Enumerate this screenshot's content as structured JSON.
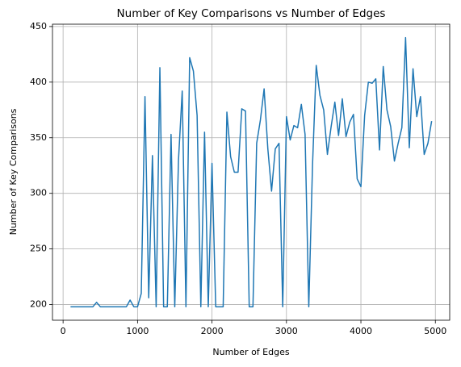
{
  "chart_data": {
    "type": "line",
    "title": "Number of Key Comparisons vs Number of Edges",
    "x_label": "Number of Edges",
    "y_label": "Number of Key Comparisons",
    "x": [
      100,
      150,
      200,
      250,
      300,
      350,
      400,
      450,
      500,
      550,
      600,
      650,
      700,
      750,
      800,
      850,
      900,
      950,
      1000,
      1050,
      1100,
      1150,
      1200,
      1250,
      1300,
      1350,
      1400,
      1450,
      1500,
      1550,
      1600,
      1650,
      1700,
      1750,
      1800,
      1850,
      1900,
      1950,
      2000,
      2050,
      2100,
      2150,
      2200,
      2250,
      2300,
      2350,
      2400,
      2450,
      2500,
      2550,
      2600,
      2650,
      2700,
      2750,
      2800,
      2850,
      2900,
      2950,
      3000,
      3050,
      3100,
      3150,
      3200,
      3250,
      3300,
      3350,
      3400,
      3450,
      3500,
      3550,
      3600,
      3650,
      3700,
      3750,
      3800,
      3850,
      3900,
      3950,
      4000,
      4050,
      4100,
      4150,
      4200,
      4250,
      4300,
      4350,
      4400,
      4450,
      4500,
      4550,
      4600,
      4650,
      4700,
      4750,
      4800,
      4850,
      4900,
      4950
    ],
    "series": [
      {
        "name": "Key Comparisons",
        "color": "#1f77b4",
        "values": [
          198,
          198,
          198,
          198,
          198,
          198,
          198,
          202,
          198,
          198,
          198,
          198,
          198,
          198,
          198,
          198,
          204,
          198,
          198,
          210,
          387,
          206,
          334,
          198,
          413,
          198,
          198,
          353,
          198,
          330,
          392,
          198,
          422,
          410,
          370,
          198,
          355,
          198,
          327,
          198,
          198,
          198,
          373,
          333,
          319,
          319,
          376,
          374,
          198,
          198,
          345,
          366,
          394,
          340,
          302,
          340,
          345,
          198,
          369,
          348,
          361,
          359,
          380,
          353,
          198,
          325,
          415,
          388,
          375,
          335,
          360,
          382,
          352,
          385,
          351,
          364,
          371,
          313,
          306,
          370,
          400,
          399,
          403,
          339,
          414,
          375,
          360,
          329,
          345,
          359,
          440,
          341,
          412,
          369,
          387,
          335,
          345,
          365
        ]
      }
    ],
    "xlim": [
      -142.5,
      5192.5
    ],
    "ylim": [
      185.9,
      452.1
    ],
    "xticks": [
      0,
      1000,
      2000,
      3000,
      4000,
      5000
    ],
    "yticks": [
      200,
      250,
      300,
      350,
      400,
      450
    ],
    "grid": true,
    "legend": false
  }
}
